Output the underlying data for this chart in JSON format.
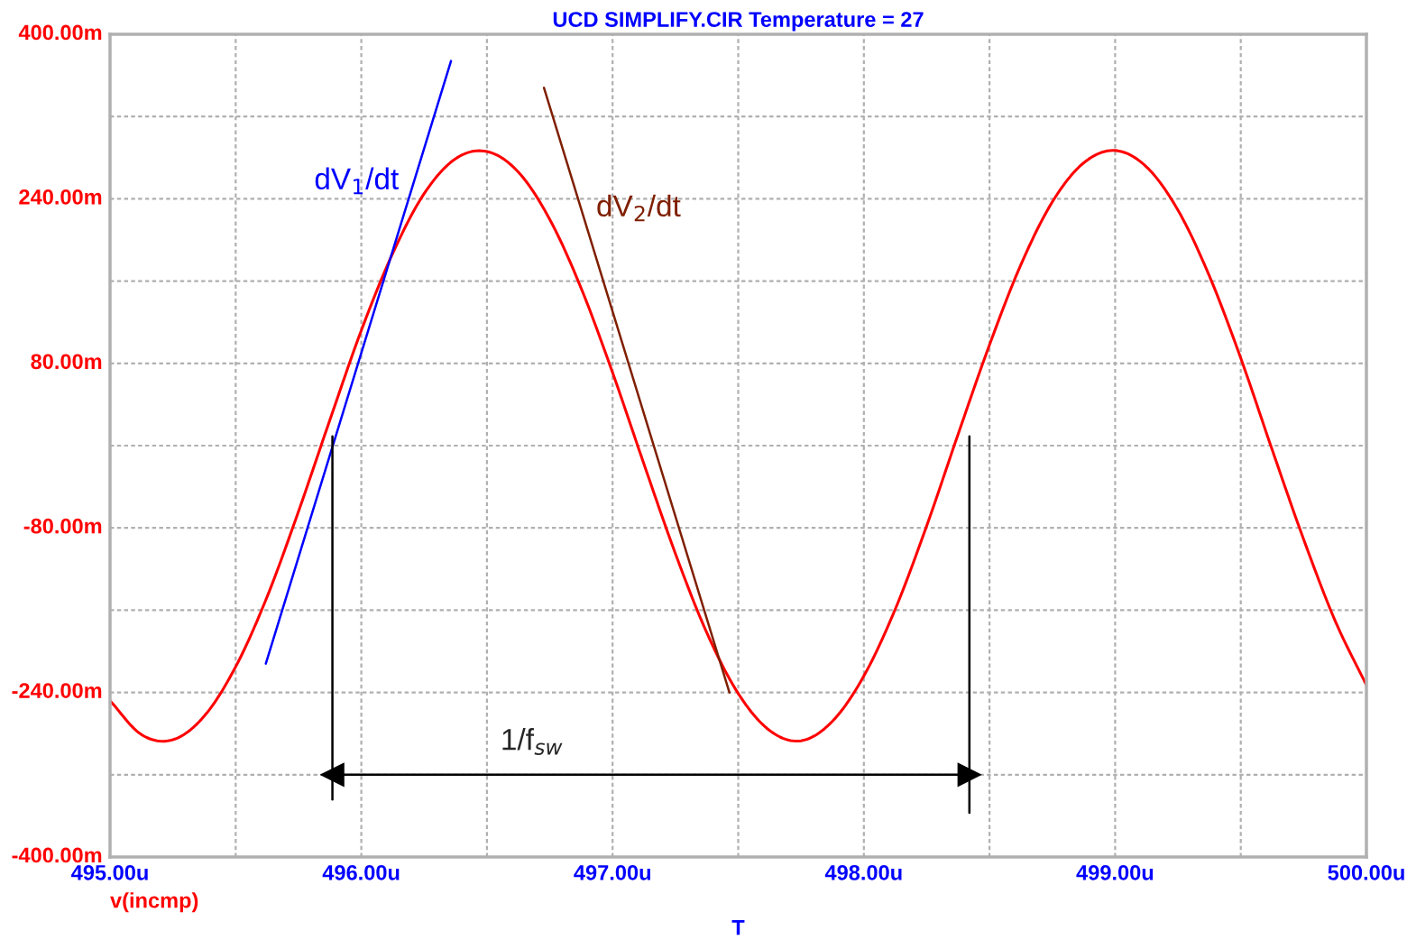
{
  "chart_data": {
    "type": "line",
    "title": "UCD SIMPLIFY.CIR Temperature = 27",
    "xlabel": "T",
    "x": [
      495.0,
      495.125,
      495.25,
      495.375,
      495.5,
      495.625,
      495.75,
      495.875,
      496.0,
      496.125,
      496.25,
      496.375,
      496.5,
      496.625,
      496.75,
      496.875,
      497.0,
      497.125,
      497.25,
      497.375,
      497.5,
      497.625,
      497.75,
      497.875,
      498.0,
      498.125,
      498.25,
      498.375,
      498.5,
      498.625,
      498.75,
      498.875,
      499.0,
      499.125,
      499.25,
      499.375,
      499.5,
      499.625,
      499.75,
      499.875,
      500.0
    ],
    "series": [
      {
        "name": "v(incmp)",
        "color": "#ff0000",
        "values": [
          -248,
          -281,
          -286,
          -263,
          -215,
          -147,
          -64,
          25,
          112,
          187,
          245,
          279,
          286,
          266,
          220,
          153,
          71,
          -18,
          -105,
          -182,
          -241,
          -277,
          -287,
          -268,
          -224,
          -159,
          -78,
          11,
          98,
          176,
          237,
          275,
          287,
          271,
          229,
          165,
          85,
          -4,
          -91,
          -170,
          -233
        ]
      },
      {
        "type": "line",
        "name": "dV$_{1}$/dt",
        "color": "#0000ff",
        "x": [
          495.62,
          496.357
        ],
        "values": [
          -212,
          374
        ]
      },
      {
        "type": "line",
        "name": "dV$_{2}$/dt",
        "color": "#7f1f00",
        "x": [
          496.727,
          497.465
        ],
        "values": [
          348,
          -240
        ]
      },
      {
        "type": "line",
        "color": "#000000",
        "x": [
          495.885,
          495.885
        ],
        "values": [
          9,
          -344
        ]
      },
      {
        "type": "line",
        "color": "#000000",
        "x": [
          498.42,
          498.42
        ],
        "values": [
          9,
          -357
        ]
      },
      {
        "type": "line",
        "color": "#000000",
        "marker": "triangle",
        "x": [
          495.885,
          498.42
        ],
        "values": [
          -320,
          -320
        ]
      }
    ],
    "annotations": [
      "1/f$_{sw}$"
    ],
    "xlim": [
      495.0,
      500.0
    ],
    "xticks": [
      {
        "value": 495.0,
        "label": "495.00u"
      },
      {
        "value": 495.5,
        "label": null
      },
      {
        "value": 496.0,
        "label": "496.00u"
      },
      {
        "value": 496.5,
        "label": null
      },
      {
        "value": 497.0,
        "label": "497.00u"
      },
      {
        "value": 497.5,
        "label": null
      },
      {
        "value": 498.0,
        "label": "498.00u"
      },
      {
        "value": 498.5,
        "label": null
      },
      {
        "value": 499.0,
        "label": "499.00u"
      },
      {
        "value": 499.5,
        "label": null
      },
      {
        "value": 500.0,
        "label": "500.00u"
      }
    ],
    "ylim": [
      -400,
      400
    ],
    "yticks": [
      {
        "value": -400,
        "label": "-400.00m"
      },
      {
        "value": -320,
        "label": null
      },
      {
        "value": -240,
        "label": "-240.00m"
      },
      {
        "value": -160,
        "label": null
      },
      {
        "value": -80,
        "label": "-80.00m"
      },
      {
        "value": 0,
        "label": null
      },
      {
        "value": 80,
        "label": "80.00m"
      },
      {
        "value": 160,
        "label": null
      },
      {
        "value": 240,
        "label": "240.00m"
      },
      {
        "value": 320,
        "label": null
      },
      {
        "value": 400,
        "label": "400.00m"
      }
    ],
    "grid": true,
    "legend": false,
    "line_style": "solid"
  }
}
